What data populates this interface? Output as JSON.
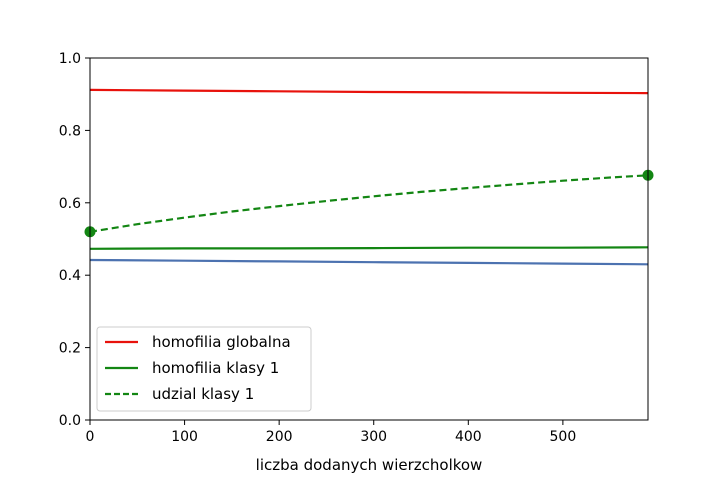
{
  "chart_data": {
    "type": "line",
    "title": "",
    "xlabel": "liczba dodanych wierzcholkow",
    "ylabel": "",
    "xlim": [
      0,
      590
    ],
    "ylim": [
      0.0,
      1.0
    ],
    "xticks": [
      0,
      100,
      200,
      300,
      400,
      500
    ],
    "xtick_labels": [
      "0",
      "100",
      "200",
      "300",
      "400",
      "500"
    ],
    "yticks": [
      0.0,
      0.2,
      0.4,
      0.6,
      0.8,
      1.0
    ],
    "ytick_labels": [
      "0.0",
      "0.2",
      "0.4",
      "0.6",
      "0.8",
      "1.0"
    ],
    "grid": false,
    "legend_position": "lower-left",
    "series": [
      {
        "name": "homofilia globalna",
        "color": "#e8120c",
        "style": "solid",
        "in_legend": true,
        "x": [
          0,
          100,
          200,
          300,
          400,
          500,
          590
        ],
        "y": [
          0.912,
          0.91,
          0.908,
          0.906,
          0.905,
          0.904,
          0.903
        ]
      },
      {
        "name": "homofilia klasy 1",
        "color": "#138613",
        "style": "solid",
        "in_legend": true,
        "x": [
          0,
          100,
          200,
          300,
          400,
          500,
          590
        ],
        "y": [
          0.473,
          0.474,
          0.474,
          0.475,
          0.476,
          0.476,
          0.477
        ]
      },
      {
        "name": "udzial klasy 1",
        "color": "#138613",
        "style": "dashed",
        "in_legend": true,
        "markers_at_ends": true,
        "x": [
          0,
          50,
          100,
          150,
          200,
          250,
          300,
          350,
          400,
          450,
          500,
          550,
          590
        ],
        "y": [
          0.52,
          0.541,
          0.559,
          0.576,
          0.591,
          0.605,
          0.618,
          0.63,
          0.641,
          0.651,
          0.661,
          0.67,
          0.676
        ]
      },
      {
        "name": "",
        "color": "#4c72b0",
        "style": "solid",
        "in_legend": false,
        "x": [
          0,
          100,
          200,
          300,
          400,
          500,
          590
        ],
        "y": [
          0.442,
          0.44,
          0.438,
          0.436,
          0.434,
          0.432,
          0.43
        ]
      }
    ]
  }
}
